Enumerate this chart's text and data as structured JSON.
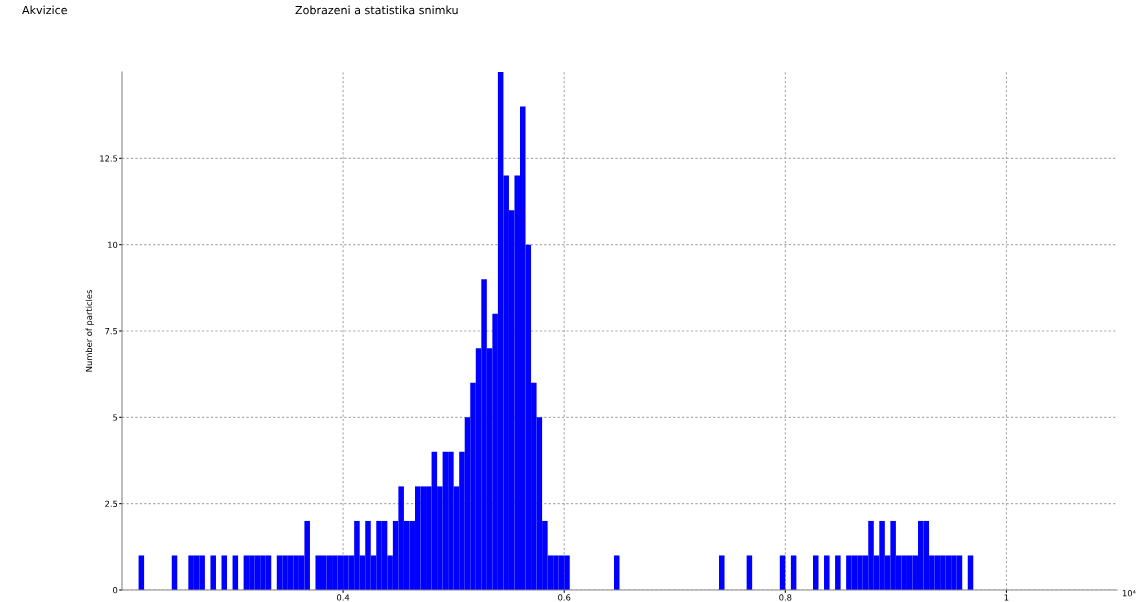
{
  "chart_data": {
    "type": "histogram",
    "ylabel": "Number of particles",
    "annotations": [
      "Akvizice",
      "Zobrazeni a statistika snimku",
      "10⁴"
    ],
    "bins": [
      0.2,
      0.205,
      0.21,
      0.215,
      0.22,
      0.225,
      0.23,
      0.235,
      0.24,
      0.245,
      0.25,
      0.255,
      0.26,
      0.265,
      0.27,
      0.275,
      0.28,
      0.285,
      0.29,
      0.295,
      0.3,
      0.305,
      0.31,
      0.315,
      0.32,
      0.325,
      0.33,
      0.335,
      0.34,
      0.345,
      0.35,
      0.355,
      0.36,
      0.365,
      0.37,
      0.375,
      0.38,
      0.385,
      0.39,
      0.395,
      0.4,
      0.405,
      0.41,
      0.415,
      0.42,
      0.425,
      0.43,
      0.435,
      0.44,
      0.445,
      0.45,
      0.455,
      0.46,
      0.465,
      0.47,
      0.475,
      0.48,
      0.485,
      0.49,
      0.495,
      0.5,
      0.505,
      0.51,
      0.515,
      0.52,
      0.525,
      0.53,
      0.535,
      0.54,
      0.545,
      0.55,
      0.555,
      0.56,
      0.565,
      0.57,
      0.575,
      0.58,
      0.585,
      0.59,
      0.595,
      0.6,
      0.605,
      0.61,
      0.615,
      0.62,
      0.625,
      0.63,
      0.635,
      0.64,
      0.645,
      0.65,
      0.655,
      0.66,
      0.665,
      0.67,
      0.675,
      0.68,
      0.685,
      0.69,
      0.695,
      0.7,
      0.705,
      0.71,
      0.715,
      0.72,
      0.725,
      0.73,
      0.735,
      0.74,
      0.745,
      0.75,
      0.755,
      0.76,
      0.765,
      0.77,
      0.775,
      0.78,
      0.785,
      0.79,
      0.795,
      0.8,
      0.805,
      0.81,
      0.815,
      0.82,
      0.825,
      0.83,
      0.835,
      0.84,
      0.845,
      0.85,
      0.855,
      0.86,
      0.865,
      0.87,
      0.875,
      0.88,
      0.885,
      0.89,
      0.895,
      0.9,
      0.905,
      0.91,
      0.915,
      0.92,
      0.925,
      0.93,
      0.935,
      0.94,
      0.945,
      0.95,
      0.955,
      0.96,
      0.965,
      0.97,
      0.975,
      0.98,
      0.985,
      0.99,
      0.995,
      1.0,
      1.005,
      1.01,
      1.015,
      1.02,
      1.025,
      1.03,
      1.035,
      1.04,
      1.045,
      1.05,
      1.055,
      1.06,
      1.065,
      1.07,
      1.075,
      1.08,
      1.085,
      1.09,
      1.095,
      1.1
    ],
    "values": [
      0,
      0,
      0,
      1,
      0,
      0,
      0,
      0,
      0,
      1,
      0,
      0,
      1,
      1,
      1,
      0,
      1,
      0,
      1,
      0,
      1,
      0,
      1,
      1,
      1,
      1,
      1,
      0,
      1,
      1,
      1,
      1,
      1,
      2,
      0,
      1,
      1,
      1,
      1,
      1,
      1,
      1,
      2,
      1,
      2,
      1,
      2,
      2,
      1,
      2,
      3,
      2,
      2,
      3,
      3,
      3,
      4,
      3,
      4,
      4,
      3,
      4,
      5,
      6,
      7,
      9,
      7,
      8,
      15,
      12,
      11,
      12,
      14,
      10,
      6,
      5,
      2,
      1,
      1,
      1,
      1,
      0,
      0,
      0,
      0,
      0,
      0,
      0,
      0,
      1,
      0,
      0,
      0,
      0,
      0,
      0,
      0,
      0,
      0,
      0,
      0,
      0,
      0,
      0,
      0,
      0,
      0,
      0,
      1,
      0,
      0,
      0,
      0,
      1,
      0,
      0,
      0,
      0,
      0,
      1,
      0,
      1,
      0,
      0,
      0,
      1,
      0,
      1,
      0,
      1,
      0,
      1,
      1,
      1,
      1,
      2,
      1,
      2,
      1,
      2,
      1,
      1,
      1,
      1,
      2,
      2,
      1,
      1,
      1,
      1,
      1,
      1,
      0,
      1,
      0,
      0,
      0,
      0,
      0,
      0,
      0,
      0,
      0,
      0,
      0,
      0,
      0,
      0,
      0,
      0,
      0,
      0,
      0,
      0,
      0,
      0,
      0,
      0,
      0,
      0
    ],
    "color": "#0000ff",
    "xlim": [
      0.2,
      1.1
    ],
    "xticks": [
      0.4,
      0.6,
      0.8,
      1
    ],
    "ylim": [
      0,
      15
    ],
    "yticks": [
      0,
      2.5,
      5,
      7.5,
      10,
      12.5
    ],
    "grid": true
  }
}
